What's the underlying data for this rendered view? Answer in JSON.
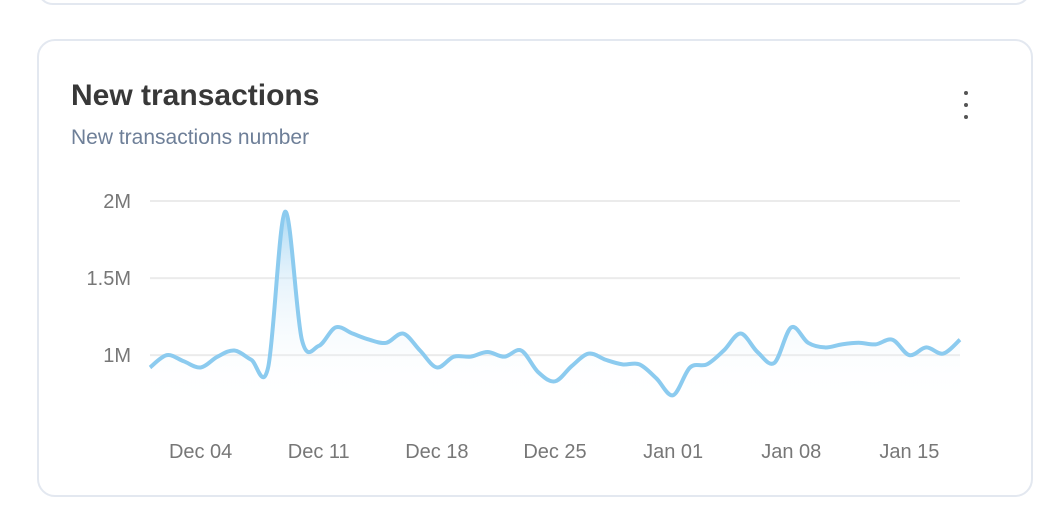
{
  "card": {
    "title": "New transactions",
    "subtitle": "New transactions number",
    "menu_icon": "kebab-vertical-icon"
  },
  "chart_data": {
    "type": "area",
    "title": "New transactions",
    "subtitle": "New transactions number",
    "color": "#8ccbef",
    "grid": true,
    "ylim": [
      0.67,
      2.0
    ],
    "yticks": [
      {
        "value": 2.0,
        "label": "2M"
      },
      {
        "value": 1.5,
        "label": "1.5M"
      },
      {
        "value": 1.0,
        "label": "1M"
      }
    ],
    "xticks": [
      {
        "index": 3,
        "label": "Dec 04"
      },
      {
        "index": 10,
        "label": "Dec 11"
      },
      {
        "index": 17,
        "label": "Dec 18"
      },
      {
        "index": 24,
        "label": "Dec 25"
      },
      {
        "index": 31,
        "label": "Jan 01"
      },
      {
        "index": 38,
        "label": "Jan 08"
      },
      {
        "index": 45,
        "label": "Jan 15"
      }
    ],
    "x": [
      "Dec 01",
      "Dec 02",
      "Dec 03",
      "Dec 04",
      "Dec 05",
      "Dec 06",
      "Dec 07",
      "Dec 08",
      "Dec 09",
      "Dec 10",
      "Dec 11",
      "Dec 12",
      "Dec 13",
      "Dec 14",
      "Dec 15",
      "Dec 16",
      "Dec 17",
      "Dec 18",
      "Dec 19",
      "Dec 20",
      "Dec 21",
      "Dec 22",
      "Dec 23",
      "Dec 24",
      "Dec 25",
      "Dec 26",
      "Dec 27",
      "Dec 28",
      "Dec 29",
      "Dec 30",
      "Dec 31",
      "Jan 01",
      "Jan 02",
      "Jan 03",
      "Jan 04",
      "Jan 05",
      "Jan 06",
      "Jan 07",
      "Jan 08",
      "Jan 09",
      "Jan 10",
      "Jan 11",
      "Jan 12",
      "Jan 13",
      "Jan 14",
      "Jan 15",
      "Jan 16",
      "Jan 17",
      "Jan 18"
    ],
    "values_millions": [
      0.92,
      1.0,
      0.96,
      0.92,
      0.99,
      1.03,
      0.97,
      0.92,
      1.93,
      1.1,
      1.06,
      1.18,
      1.14,
      1.1,
      1.08,
      1.14,
      1.03,
      0.92,
      0.99,
      0.99,
      1.02,
      0.99,
      1.03,
      0.89,
      0.83,
      0.93,
      1.01,
      0.97,
      0.94,
      0.94,
      0.85,
      0.74,
      0.92,
      0.94,
      1.03,
      1.14,
      1.02,
      0.95,
      1.18,
      1.08,
      1.05,
      1.07,
      1.08,
      1.07,
      1.1,
      1.0,
      1.05,
      1.01,
      1.1
    ]
  }
}
